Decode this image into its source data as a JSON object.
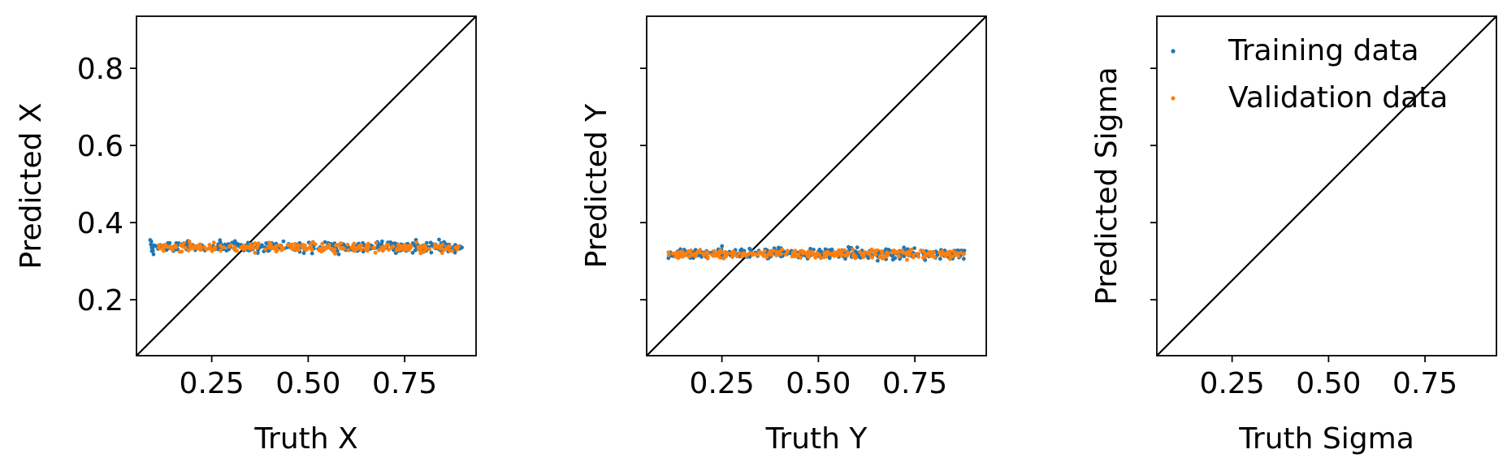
{
  "chart_data": [
    {
      "type": "scatter",
      "xlabel": "Truth X",
      "ylabel": "Predicted X",
      "xlim": [
        0.055,
        0.935
      ],
      "ylim": [
        0.055,
        0.935
      ],
      "xticks": [
        {
          "value": 0.25,
          "label": "0.25"
        },
        {
          "value": 0.5,
          "label": "0.50"
        },
        {
          "value": 0.75,
          "label": "0.75"
        }
      ],
      "yticks": [
        {
          "value": 0.2,
          "label": "0.2"
        },
        {
          "value": 0.4,
          "label": "0.4"
        },
        {
          "value": 0.6,
          "label": "0.6"
        },
        {
          "value": 0.8,
          "label": "0.8"
        }
      ],
      "identity_line": true,
      "series": [
        {
          "name": "Training data",
          "color": "#1f77b4",
          "x_range": [
            0.09,
            0.9
          ],
          "y_mean": 0.337,
          "y_spread": 0.012,
          "count": 90
        },
        {
          "name": "Validation data",
          "color": "#ff7f0e",
          "x_range": [
            0.11,
            0.89
          ],
          "y_mean": 0.335,
          "y_spread": 0.01,
          "count": 70
        }
      ]
    },
    {
      "type": "scatter",
      "xlabel": "Truth Y",
      "ylabel": "Predicted Y",
      "xlim": [
        0.055,
        0.935
      ],
      "ylim": [
        0.055,
        0.935
      ],
      "xticks": [
        {
          "value": 0.25,
          "label": "0.25"
        },
        {
          "value": 0.5,
          "label": "0.50"
        },
        {
          "value": 0.75,
          "label": "0.75"
        }
      ],
      "yticks": [
        {
          "value": 0.2,
          "label": ""
        },
        {
          "value": 0.4,
          "label": ""
        },
        {
          "value": 0.6,
          "label": ""
        },
        {
          "value": 0.8,
          "label": ""
        }
      ],
      "identity_line": true,
      "series": [
        {
          "name": "Training data",
          "color": "#1f77b4",
          "x_range": [
            0.11,
            0.88
          ],
          "y_mean": 0.32,
          "y_spread": 0.012,
          "count": 90
        },
        {
          "name": "Validation data",
          "color": "#ff7f0e",
          "x_range": [
            0.11,
            0.88
          ],
          "y_mean": 0.318,
          "y_spread": 0.01,
          "count": 70
        }
      ]
    },
    {
      "type": "scatter",
      "xlabel": "Truth Sigma",
      "ylabel": "Predicted Sigma",
      "xlim": [
        0.055,
        0.935
      ],
      "ylim": [
        0.055,
        0.935
      ],
      "xticks": [
        {
          "value": 0.25,
          "label": "0.25"
        },
        {
          "value": 0.5,
          "label": "0.50"
        },
        {
          "value": 0.75,
          "label": "0.75"
        }
      ],
      "yticks": [
        {
          "value": 0.2,
          "label": ""
        },
        {
          "value": 0.4,
          "label": ""
        },
        {
          "value": 0.6,
          "label": ""
        },
        {
          "value": 0.8,
          "label": ""
        }
      ],
      "identity_line": true,
      "series": [],
      "legend": {
        "placement": "upper-left",
        "entries": [
          {
            "label": "Training data",
            "color": "#1f77b4"
          },
          {
            "label": "Validation data",
            "color": "#ff7f0e"
          }
        ]
      }
    }
  ]
}
